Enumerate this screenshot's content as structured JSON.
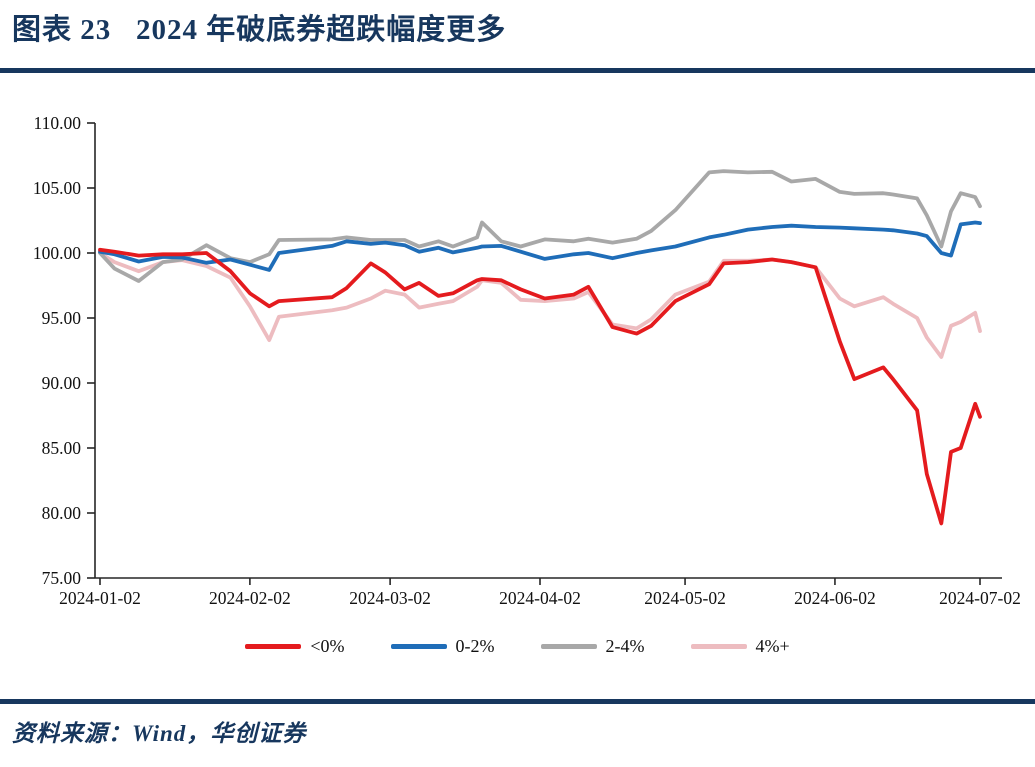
{
  "header": {
    "title": "图表 23   2024 年破底券超跌幅度更多"
  },
  "footer": {
    "source_label": "资料来源：Wind，华创证券"
  },
  "colors": {
    "accent_navy": "#17375e",
    "axis": "#262626",
    "tick_text": "#111111"
  },
  "chart_data": {
    "type": "line",
    "title": "2024 年破底券超跌幅度更多",
    "xlabel": "",
    "ylabel": "",
    "ylim": [
      75,
      110
    ],
    "y_tick_step": 5,
    "grid": false,
    "legend_position": "bottom",
    "x_ticks": [
      "2024-01-02",
      "2024-02-02",
      "2024-03-02",
      "2024-04-02",
      "2024-05-02",
      "2024-06-02",
      "2024-07-02"
    ],
    "x": [
      "2024-01-02",
      "2024-01-05",
      "2024-01-10",
      "2024-01-15",
      "2024-01-19",
      "2024-01-24",
      "2024-01-29",
      "2024-02-02",
      "2024-02-06",
      "2024-02-08",
      "2024-02-19",
      "2024-02-22",
      "2024-02-27",
      "2024-03-01",
      "2024-03-05",
      "2024-03-08",
      "2024-03-12",
      "2024-03-15",
      "2024-03-20",
      "2024-03-21",
      "2024-03-25",
      "2024-03-29",
      "2024-04-03",
      "2024-04-09",
      "2024-04-12",
      "2024-04-17",
      "2024-04-22",
      "2024-04-25",
      "2024-04-30",
      "2024-05-07",
      "2024-05-10",
      "2024-05-15",
      "2024-05-20",
      "2024-05-24",
      "2024-05-29",
      "2024-06-03",
      "2024-06-06",
      "2024-06-12",
      "2024-06-14",
      "2024-06-19",
      "2024-06-21",
      "2024-06-24",
      "2024-06-26",
      "2024-06-28",
      "2024-07-01",
      "2024-07-02"
    ],
    "series": [
      {
        "name": "<0%",
        "color": "#e41b1e",
        "values": [
          100.25,
          100.1,
          99.8,
          99.9,
          99.9,
          100.0,
          98.6,
          96.9,
          95.9,
          96.3,
          96.6,
          97.3,
          99.2,
          98.5,
          97.2,
          97.7,
          96.7,
          96.9,
          97.9,
          98.0,
          97.9,
          97.2,
          96.5,
          96.8,
          97.4,
          94.3,
          93.8,
          94.4,
          96.3,
          97.6,
          99.2,
          99.3,
          99.5,
          99.3,
          98.9,
          93.2,
          90.3,
          91.2,
          90.3,
          87.9,
          83.0,
          79.2,
          84.7,
          85.0,
          88.4,
          87.4
        ]
      },
      {
        "name": "0-2%",
        "color": "#1f6db8",
        "values": [
          100.1,
          99.9,
          99.35,
          99.7,
          99.65,
          99.25,
          99.5,
          99.1,
          98.7,
          100.0,
          100.55,
          100.9,
          100.7,
          100.8,
          100.6,
          100.1,
          100.4,
          100.05,
          100.4,
          100.5,
          100.55,
          100.1,
          99.55,
          99.9,
          100.0,
          99.6,
          100.0,
          100.2,
          100.5,
          101.2,
          101.4,
          101.8,
          102.0,
          102.1,
          102.0,
          101.95,
          101.9,
          101.8,
          101.75,
          101.5,
          101.3,
          100.0,
          99.8,
          102.2,
          102.35,
          102.3
        ]
      },
      {
        "name": "2-4%",
        "color": "#a8a8a8",
        "values": [
          100.0,
          98.8,
          97.85,
          99.3,
          99.5,
          100.6,
          99.6,
          99.3,
          99.9,
          101.0,
          101.05,
          101.2,
          101.0,
          101.0,
          101.0,
          100.5,
          100.9,
          100.5,
          101.2,
          102.35,
          100.9,
          100.5,
          101.05,
          100.9,
          101.1,
          100.8,
          101.1,
          101.7,
          103.3,
          106.2,
          106.3,
          106.2,
          106.25,
          105.5,
          105.7,
          104.7,
          104.55,
          104.6,
          104.5,
          104.2,
          102.9,
          100.5,
          103.2,
          104.6,
          104.3,
          103.6
        ]
      },
      {
        "name": "4%+",
        "color": "#edbcc0",
        "values": [
          100.0,
          99.3,
          98.6,
          99.3,
          99.45,
          99.0,
          98.1,
          95.9,
          93.3,
          95.1,
          95.6,
          95.8,
          96.5,
          97.1,
          96.8,
          95.8,
          96.1,
          96.3,
          97.4,
          97.9,
          97.7,
          96.4,
          96.3,
          96.5,
          97.0,
          94.5,
          94.2,
          94.9,
          96.8,
          97.8,
          99.4,
          99.4,
          99.5,
          99.3,
          98.9,
          96.5,
          95.9,
          96.6,
          96.1,
          95.0,
          93.5,
          92.0,
          94.4,
          94.7,
          95.4,
          94.0
        ]
      }
    ]
  }
}
